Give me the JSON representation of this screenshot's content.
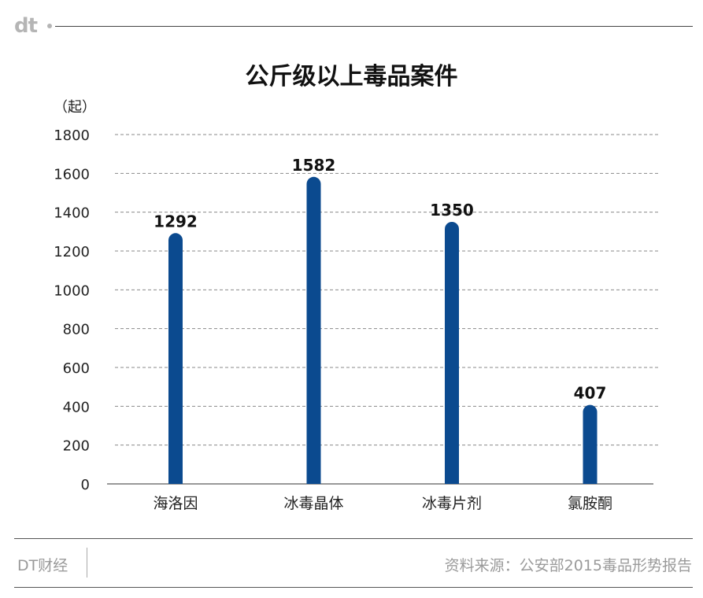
{
  "header": {
    "logo": "dt"
  },
  "chart_data": {
    "type": "bar",
    "title": "公斤级以上毒品案件",
    "ylabel": "（起）",
    "xlabel": "",
    "categories": [
      "海洛因",
      "冰毒晶体",
      "冰毒片剂",
      "氯胺酮"
    ],
    "values": [
      1292,
      1582,
      1350,
      407
    ],
    "ylim": [
      0,
      1800
    ],
    "yticks": [
      0,
      200,
      400,
      600,
      800,
      1000,
      1200,
      1400,
      1600,
      1800
    ],
    "grid": true,
    "bar_color": "#0b4a8f"
  },
  "footer": {
    "brand": "DT财经",
    "source": "资料来源：公安部2015毒品形势报告"
  }
}
